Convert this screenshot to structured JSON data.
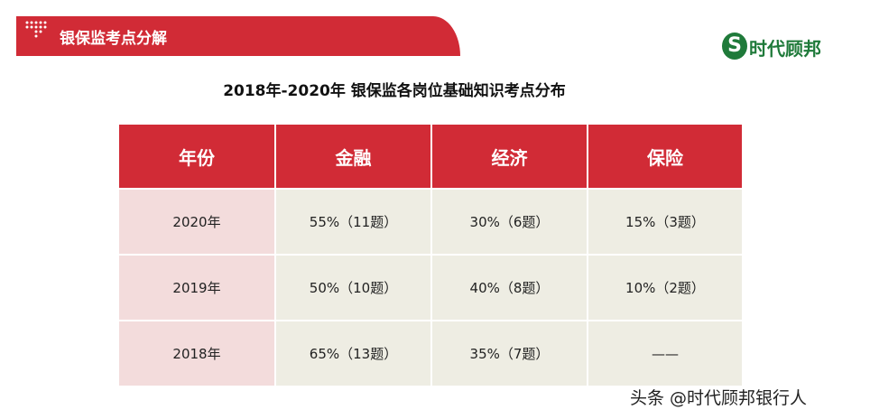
{
  "header": {
    "title": "银保监考点分解",
    "logo_letter": "S",
    "brand": "时代顾邦"
  },
  "table": {
    "title": "2018年-2020年 银保监各岗位基础知识考点分布",
    "columns": [
      "年份",
      "金融",
      "经济",
      "保险"
    ],
    "rows": [
      [
        "2020年",
        "55%（11题）",
        "30%（6题）",
        "15%（3题）"
      ],
      [
        "2019年",
        "50%（10题）",
        "40%（8题）",
        "10%（2题）"
      ],
      [
        "2018年",
        "65%（13题）",
        "35%（7题）",
        "——"
      ]
    ]
  },
  "watermark": "头条 @时代顾邦银行人"
}
